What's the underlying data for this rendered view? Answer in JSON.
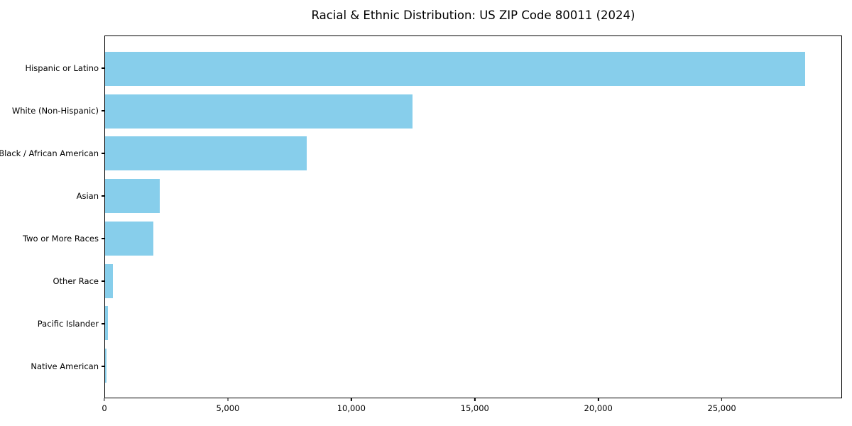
{
  "chart_data": {
    "type": "bar",
    "orientation": "horizontal",
    "title": "Racial & Ethnic Distribution: US ZIP Code 80011 (2024)",
    "categories": [
      "Hispanic or Latino",
      "White (Non-Hispanic)",
      "Black / African American",
      "Asian",
      "Two or More Races",
      "Other Race",
      "Pacific Islander",
      "Native American"
    ],
    "values": [
      28400,
      12460,
      8190,
      2230,
      1970,
      320,
      115,
      70
    ],
    "xlabel": "",
    "ylabel": "",
    "xlim": [
      0,
      29870
    ],
    "x_ticks": [
      {
        "value": 0,
        "label": "0"
      },
      {
        "value": 5000,
        "label": "5,000"
      },
      {
        "value": 10000,
        "label": "10,000"
      },
      {
        "value": 15000,
        "label": "15,000"
      },
      {
        "value": 20000,
        "label": "20,000"
      },
      {
        "value": 25000,
        "label": "25,000"
      }
    ],
    "bar_color": "#87CEEB",
    "spine_color": "#000000",
    "background_color": "#FFFFFF",
    "grid": false,
    "legend": "none"
  }
}
